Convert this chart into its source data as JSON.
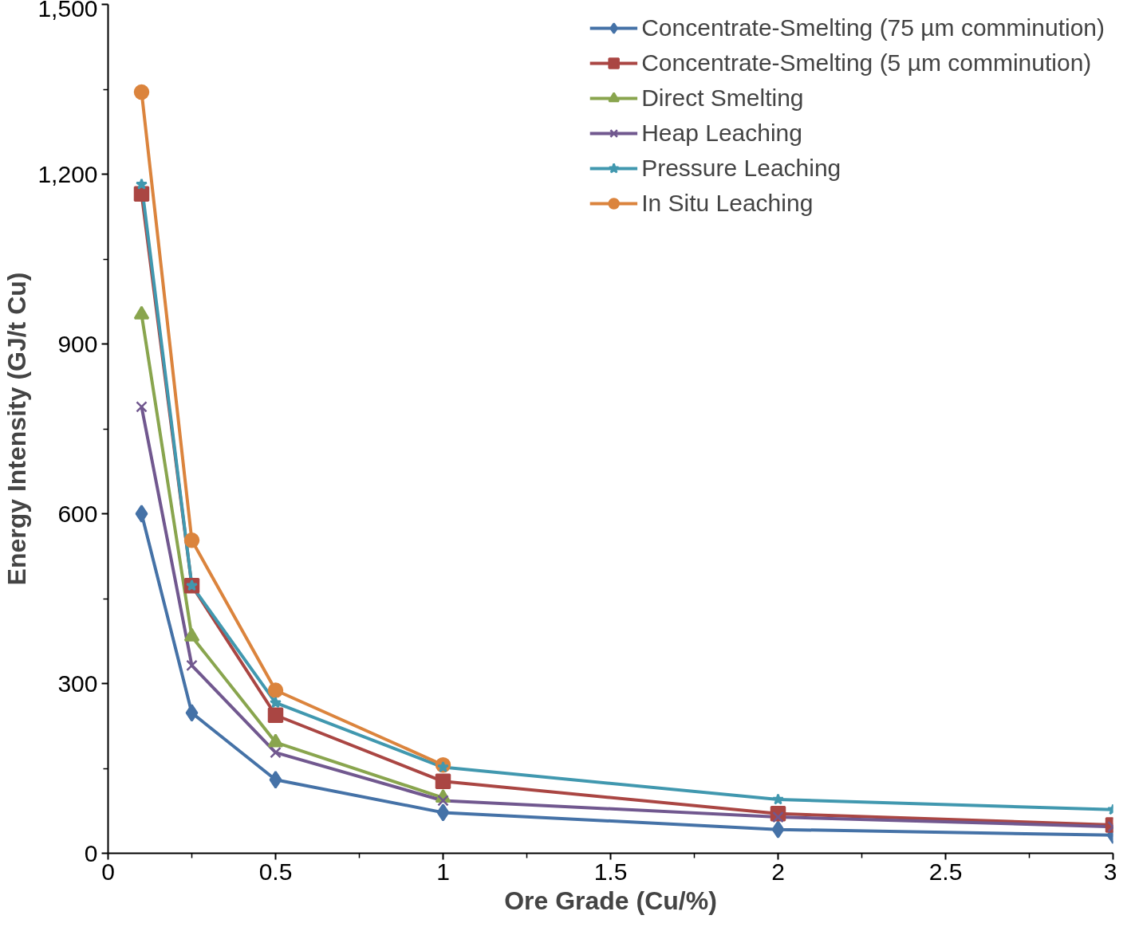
{
  "chart_data": {
    "type": "line",
    "xlabel": "Ore Grade (Cu/%)",
    "ylabel": "Energy Intensity (GJ/t Cu)",
    "xlim": [
      0,
      3
    ],
    "ylim": [
      0,
      1500
    ],
    "xticks": [
      0,
      0.5,
      1,
      1.5,
      2,
      2.5,
      3
    ],
    "yticks": [
      0,
      300,
      600,
      900,
      {
        "value": 1200,
        "label": "1,200"
      },
      {
        "value": 1500,
        "label": "1,500"
      }
    ],
    "grid": false,
    "legend": "top right",
    "line_style": "solid",
    "series": [
      {
        "name": "Concentrate-Smelting (75 µm comminution)",
        "color": "#4572a7",
        "marker": "diamond",
        "x": [
          0.1,
          0.25,
          0.5,
          1,
          2,
          3
        ],
        "values": [
          600,
          248,
          130,
          72,
          42,
          32
        ]
      },
      {
        "name": "Concentrate-Smelting (5 µm comminution)",
        "color": "#aa4643",
        "marker": "square",
        "x": [
          0.1,
          0.25,
          0.5,
          1,
          2,
          3
        ],
        "values": [
          1165,
          473,
          244,
          127,
          70,
          50
        ]
      },
      {
        "name": "Direct Smelting",
        "color": "#89a54e",
        "marker": "triangle",
        "x": [
          0.1,
          0.25,
          0.5,
          1
        ],
        "values": [
          952,
          383,
          196,
          98
        ]
      },
      {
        "name": "Heap Leaching",
        "color": "#71588f",
        "marker": "cross",
        "x": [
          0.1,
          0.25,
          0.5,
          1,
          2,
          3
        ],
        "values": [
          789,
          332,
          178,
          93,
          64,
          47
        ]
      },
      {
        "name": "Pressure Leaching",
        "color": "#4198af",
        "marker": "star",
        "x": [
          0.1,
          0.25,
          0.5,
          1,
          2,
          3
        ],
        "values": [
          1182,
          473,
          266,
          152,
          95,
          77
        ]
      },
      {
        "name": "In Situ Leaching",
        "color": "#db843d",
        "marker": "circle",
        "x": [
          0.1,
          0.25,
          0.5,
          1
        ],
        "values": [
          1345,
          553,
          288,
          156
        ]
      }
    ]
  }
}
